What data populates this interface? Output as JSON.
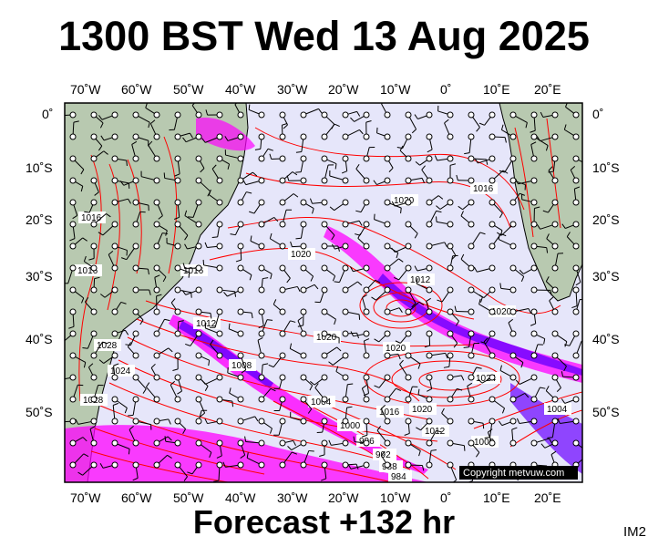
{
  "header": {
    "title": "1300 BST Wed 13 Aug 2025"
  },
  "footer": {
    "forecast": "Forecast +132 hr",
    "image_id": "IM2"
  },
  "map": {
    "copyright": "Copyright metvuw.com",
    "lon_labels": [
      "70˚W",
      "60˚W",
      "50˚W",
      "40˚W",
      "30˚W",
      "20˚W",
      "10˚W",
      "0˚",
      "10˚E",
      "20˚E"
    ],
    "lat_labels": [
      "0˚",
      "10˚S",
      "20˚S",
      "30˚S",
      "40˚S",
      "50˚S"
    ],
    "isobar_labels": [
      "1020",
      "1016",
      "1012",
      "1008",
      "1004",
      "1000",
      "996",
      "992",
      "988",
      "984",
      "1024",
      "1028"
    ],
    "colors": {
      "ocean": "#e6e6fa",
      "land": "#b8c9b0",
      "isobar": "#ff0000",
      "precip_light": "#ff00ff",
      "precip_heavy": "#6a00ff"
    }
  }
}
